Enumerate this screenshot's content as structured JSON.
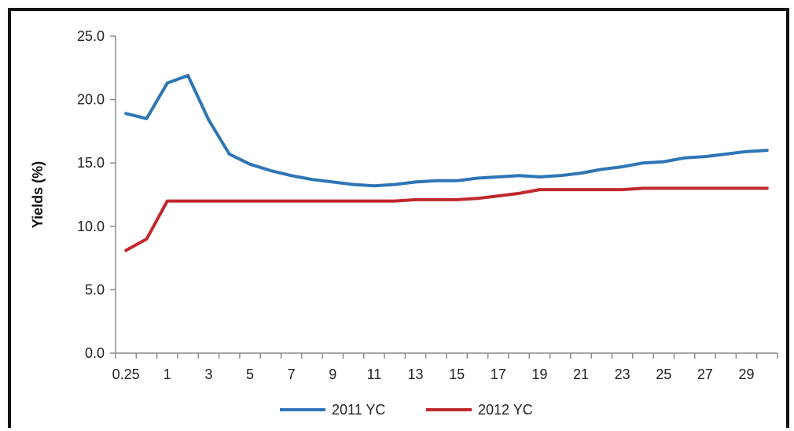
{
  "chart_data": {
    "type": "line",
    "title": "",
    "xlabel": "",
    "ylabel": "Yields (%)",
    "ylim": [
      0,
      25
    ],
    "yticks": [
      "0.0",
      "5.0",
      "10.0",
      "15.0",
      "20.0",
      "25.0"
    ],
    "x": [
      0.25,
      0.5,
      1,
      2,
      3,
      4,
      5,
      6,
      7,
      8,
      9,
      10,
      11,
      12,
      13,
      14,
      15,
      16,
      17,
      18,
      19,
      20,
      21,
      22,
      23,
      24,
      25,
      26,
      27,
      28,
      29,
      30
    ],
    "xtick_labels": [
      "0.25",
      "1",
      "3",
      "5",
      "7",
      "9",
      "11",
      "13",
      "15",
      "17",
      "19",
      "21",
      "23",
      "25",
      "27",
      "29"
    ],
    "series": [
      {
        "name": "2011 YC",
        "color": "#2e75b6",
        "values": [
          18.9,
          18.5,
          21.3,
          21.9,
          18.4,
          15.7,
          14.9,
          14.4,
          14.0,
          13.7,
          13.5,
          13.3,
          13.2,
          13.3,
          13.5,
          13.6,
          13.6,
          13.8,
          13.9,
          14.0,
          13.9,
          14.0,
          14.2,
          14.5,
          14.7,
          15.0,
          15.1,
          15.4,
          15.5,
          15.7,
          15.9,
          16.0
        ]
      },
      {
        "name": "2012 YC",
        "color": "#c0282d",
        "values": [
          8.1,
          9.0,
          12.0,
          12.0,
          12.0,
          12.0,
          12.0,
          12.0,
          12.0,
          12.0,
          12.0,
          12.0,
          12.0,
          12.0,
          12.1,
          12.1,
          12.1,
          12.2,
          12.4,
          12.6,
          12.9,
          12.9,
          12.9,
          12.9,
          12.9,
          13.0,
          13.0,
          13.0,
          13.0,
          13.0,
          13.0,
          13.0
        ]
      }
    ],
    "grid": false,
    "legend_position": "bottom"
  }
}
